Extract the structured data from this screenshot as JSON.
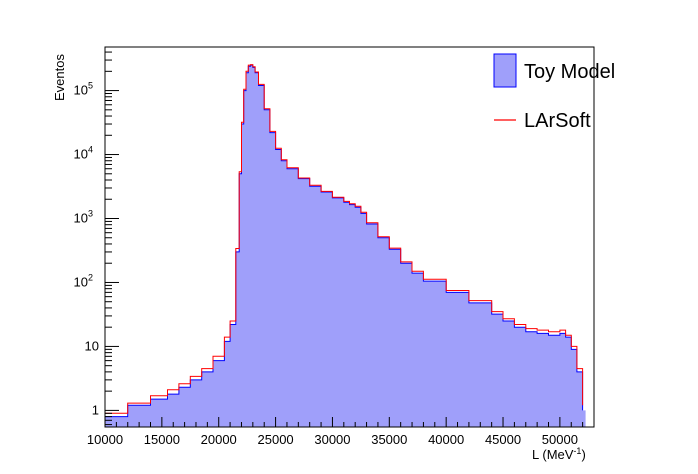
{
  "chart_data": {
    "type": "area",
    "xlabel": "L (MeV",
    "xlabel_sup": "-1",
    "xlabel_close": ")",
    "ylabel": "Eventos",
    "xlim": [
      10000,
      53000
    ],
    "ylim": [
      0.55,
      480000
    ],
    "y_scale": "log",
    "x_ticks": [
      10000,
      15000,
      20000,
      25000,
      30000,
      35000,
      40000,
      45000,
      50000
    ],
    "x_tick_labels": [
      "10000",
      "15000",
      "20000",
      "25000",
      "30000",
      "35000",
      "40000",
      "45000",
      "50000"
    ],
    "y_ticks": [
      {
        "value": 1,
        "base": "1",
        "exp": ""
      },
      {
        "value": 10,
        "base": "10",
        "exp": ""
      },
      {
        "value": 100,
        "base": "10",
        "exp": "2"
      },
      {
        "value": 1000,
        "base": "10",
        "exp": "3"
      },
      {
        "value": 10000,
        "base": "10",
        "exp": "4"
      },
      {
        "value": 100000,
        "base": "10",
        "exp": "5"
      }
    ],
    "legend_position": "top-right",
    "series": [
      {
        "name": "Toy Model",
        "style": "filled",
        "fill": "#9f9ffa",
        "stroke": "#0000ff",
        "x": [
          10000,
          12000,
          14000,
          15500,
          16500,
          17500,
          18500,
          19500,
          20500,
          21000,
          21500,
          21800,
          22000,
          22200,
          22400,
          22600,
          22800,
          23000,
          23200,
          23500,
          24000,
          24500,
          25000,
          25500,
          26000,
          27000,
          28000,
          29000,
          30000,
          31000,
          31500,
          32000,
          32500,
          33000,
          34000,
          35000,
          36000,
          37000,
          38000,
          40000,
          42000,
          44000,
          45000,
          46000,
          47000,
          48000,
          49000,
          50000,
          50500,
          51000,
          51500,
          52000
        ],
        "y": [
          0.8,
          1.2,
          1.5,
          1.8,
          2.3,
          3,
          4,
          6,
          12,
          22,
          300,
          5000,
          30000,
          100000,
          190000,
          240000,
          250000,
          230000,
          190000,
          120000,
          50000,
          22000,
          12000,
          8000,
          6000,
          4200,
          3200,
          2600,
          2100,
          1800,
          1650,
          1500,
          1200,
          820,
          500,
          330,
          200,
          140,
          105,
          70,
          48,
          32,
          25,
          20,
          17,
          16,
          15,
          16,
          14,
          9,
          4,
          1
        ]
      },
      {
        "name": "LArSoft",
        "style": "line",
        "stroke": "#ff0000",
        "x": [
          10000,
          12000,
          14000,
          15500,
          16500,
          17500,
          18500,
          19500,
          20500,
          21000,
          21500,
          21800,
          22000,
          22200,
          22400,
          22600,
          22800,
          23000,
          23200,
          23500,
          24000,
          24500,
          25000,
          25500,
          26000,
          27000,
          28000,
          29000,
          30000,
          31000,
          31500,
          32000,
          32500,
          33000,
          34000,
          35000,
          36000,
          37000,
          38000,
          40000,
          42000,
          44000,
          45000,
          46000,
          47000,
          48000,
          49000,
          50000,
          50500,
          51000,
          51500,
          52000
        ],
        "y": [
          0.9,
          1.3,
          1.7,
          2.1,
          2.6,
          3.4,
          4.5,
          7,
          14,
          25,
          340,
          5400,
          32000,
          105000,
          200000,
          250000,
          255000,
          235000,
          195000,
          125000,
          52000,
          23000,
          12500,
          8300,
          6200,
          4300,
          3300,
          2650,
          2150,
          1850,
          1700,
          1550,
          1250,
          860,
          520,
          345,
          210,
          150,
          112,
          75,
          52,
          35,
          27,
          22,
          19,
          18,
          17,
          18,
          15,
          10,
          4.5,
          1.2
        ]
      }
    ]
  }
}
